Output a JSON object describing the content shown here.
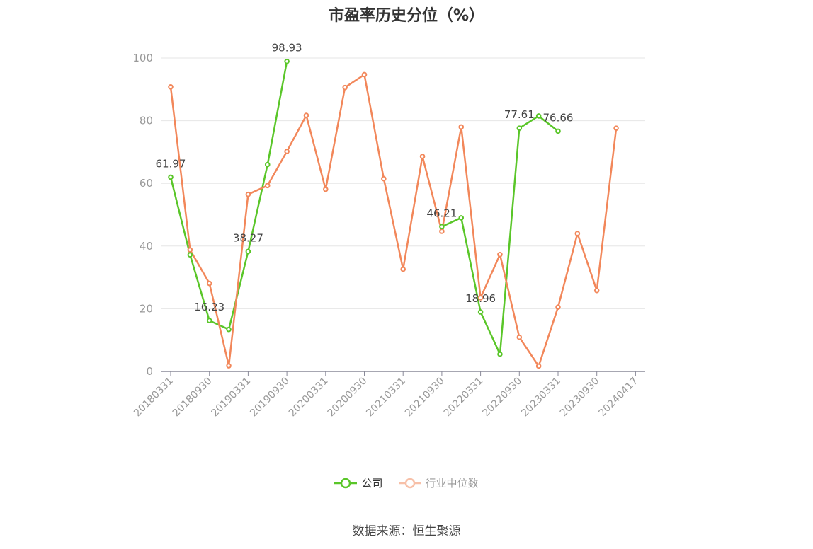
{
  "chart_data": {
    "type": "line",
    "title": "市盈率历史分位（%）",
    "ylim": [
      0,
      100
    ],
    "yticks": [
      0,
      20,
      40,
      60,
      80,
      100
    ],
    "categories": [
      "20180331",
      "20180630",
      "20180930",
      "20181231",
      "20190331",
      "20190630",
      "20190930",
      "20191231",
      "20200331",
      "20200630",
      "20200930",
      "20201231",
      "20210331",
      "20210630",
      "20210930",
      "20211231",
      "20220331",
      "20220630",
      "20220930",
      "20221231",
      "20230331",
      "20230630",
      "20230930",
      "20231231",
      "20240417"
    ],
    "tick_labels": [
      "20180331",
      "20180930",
      "20190331",
      "20190930",
      "20200331",
      "20200930",
      "20210331",
      "20210930",
      "20220331",
      "20220930",
      "20230331",
      "20230930",
      "20240417"
    ],
    "grid": true,
    "legend_position": "bottom",
    "series": [
      {
        "name": "公司",
        "color": "#5ac629",
        "values": [
          61.97,
          37.2,
          16.23,
          13.4,
          38.27,
          66.0,
          98.93,
          null,
          null,
          null,
          null,
          null,
          null,
          null,
          46.21,
          49.0,
          18.96,
          5.5,
          77.61,
          81.5,
          76.66,
          null,
          null,
          null,
          null
        ],
        "labels": [
          "61.97",
          null,
          "16.23",
          null,
          "38.27",
          null,
          "98.93",
          null,
          null,
          null,
          null,
          null,
          null,
          null,
          "46.21",
          null,
          "18.96",
          null,
          "77.61",
          null,
          "76.66",
          null,
          null,
          null,
          null
        ]
      },
      {
        "name": "行业中位数",
        "color": "#f2875a",
        "values": [
          90.8,
          38.8,
          28.1,
          1.8,
          56.5,
          59.3,
          70.2,
          81.7,
          58.1,
          90.6,
          94.7,
          61.5,
          32.6,
          68.6,
          44.7,
          78.0,
          23.5,
          37.3,
          10.9,
          1.7,
          20.5,
          44.0,
          25.8,
          77.6,
          null
        ],
        "labels": []
      }
    ]
  },
  "footer": {
    "source": "数据来源：恒生聚源"
  }
}
